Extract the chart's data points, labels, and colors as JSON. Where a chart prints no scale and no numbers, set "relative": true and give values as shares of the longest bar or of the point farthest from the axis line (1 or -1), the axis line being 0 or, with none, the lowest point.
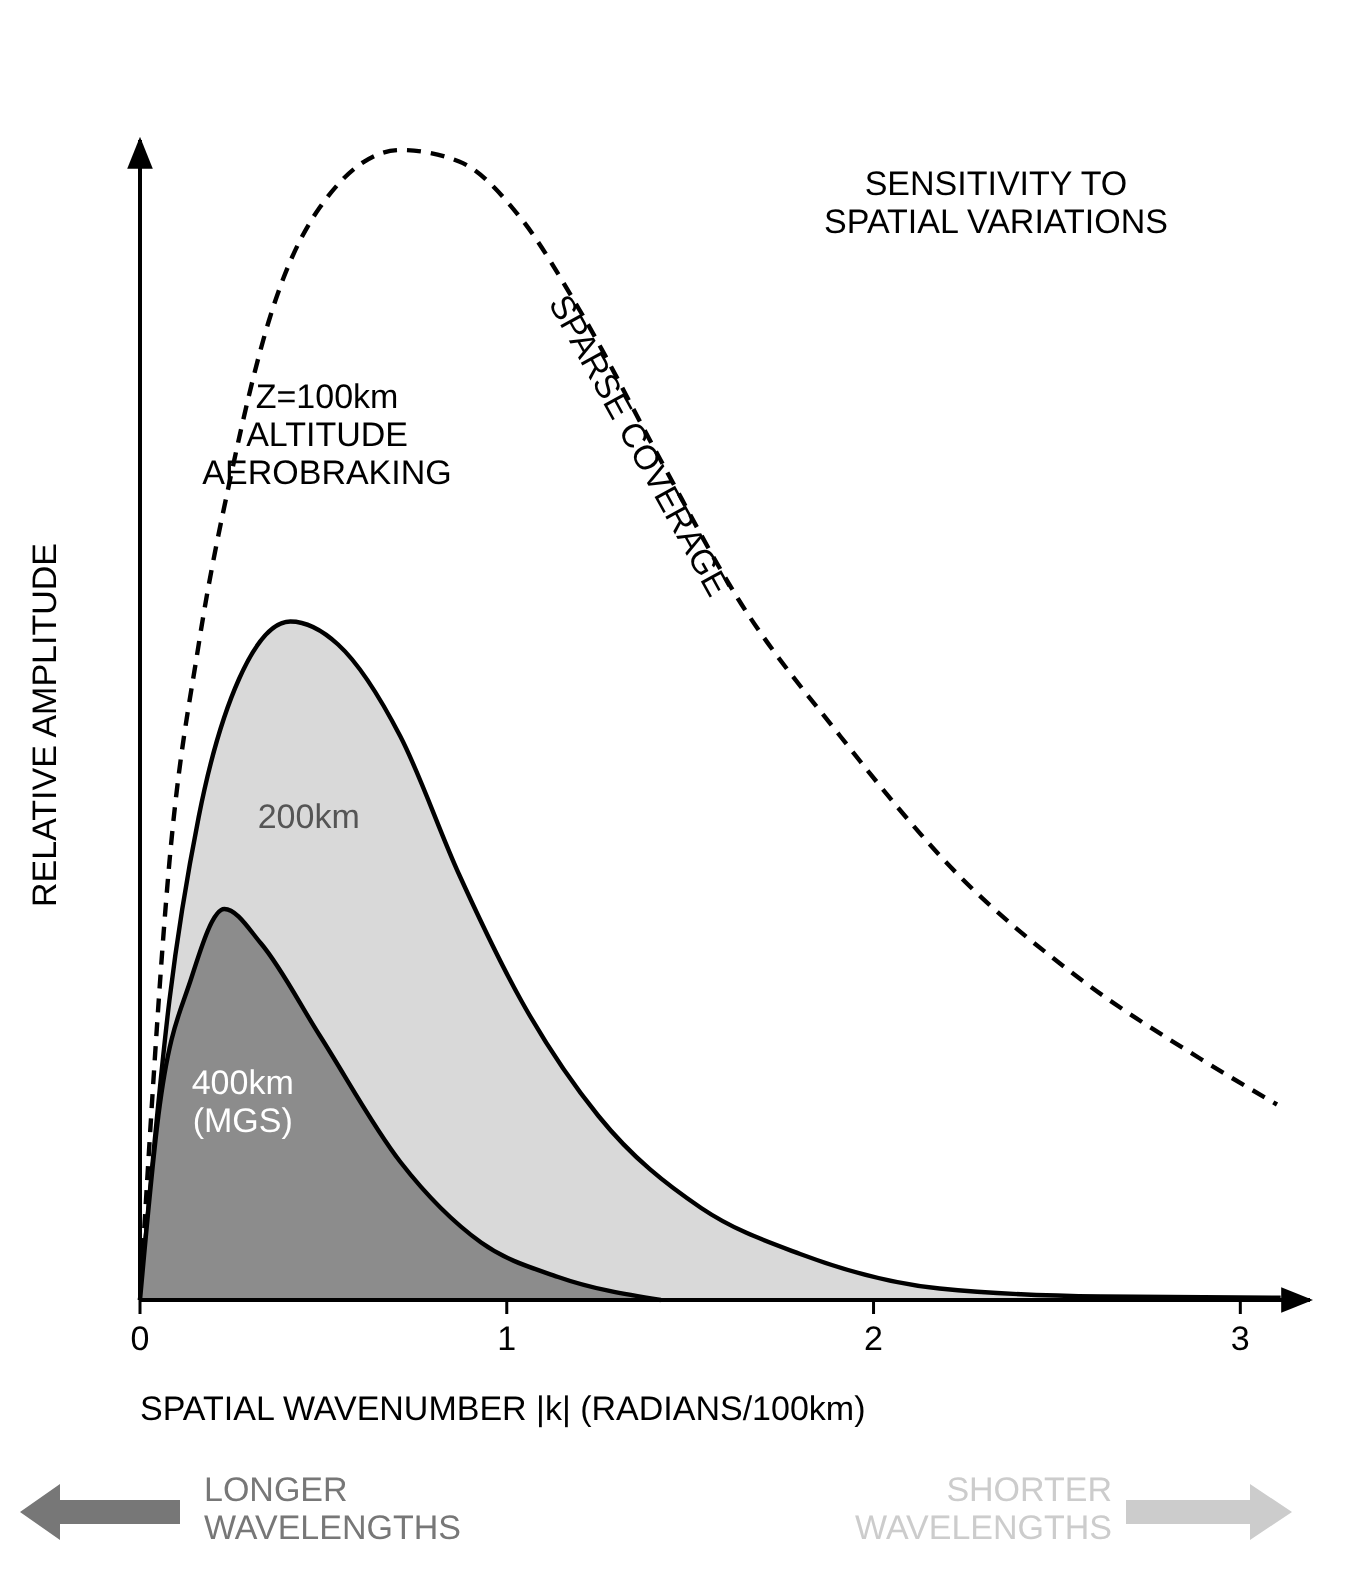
{
  "chart_data": {
    "type": "area",
    "relative": true,
    "title": "SENSITIVITY TO\nSPATIAL VARIATIONS",
    "xlabel": "SPATIAL WAVENUMBER |k| (RADIANS/100km)",
    "ylabel": "RELATIVE AMPLITUDE",
    "xlim": [
      0,
      3.19
    ],
    "xticks": [
      0,
      1,
      2,
      3
    ],
    "grid": false,
    "legend": false,
    "series": [
      {
        "name": "Z=100km\nALTITUDE\nAEROBRAKING",
        "type": "line",
        "line_style": "dashed",
        "color": "#000000",
        "x": [
          0,
          0.08,
          0.16,
          0.25,
          0.35,
          0.49,
          0.71,
          0.87,
          1.04,
          1.2,
          1.42,
          1.63,
          1.91,
          2.23,
          2.56,
          2.89,
          3.1
        ],
        "values": [
          0,
          0.38,
          0.57,
          0.72,
          0.85,
          0.95,
          1,
          0.99,
          0.94,
          0.86,
          0.73,
          0.61,
          0.49,
          0.37,
          0.28,
          0.21,
          0.17
        ]
      },
      {
        "name": "200km",
        "color": "#d9d9d9",
        "x": [
          0,
          0.08,
          0.16,
          0.27,
          0.41,
          0.54,
          0.71,
          0.87,
          1.04,
          1.25,
          1.53,
          1.8,
          2.18,
          2.62,
          3.11
        ],
        "values": [
          0,
          0.26,
          0.42,
          0.54,
          0.59,
          0.57,
          0.49,
          0.37,
          0.26,
          0.16,
          0.08,
          0.04,
          0.01,
          0.003,
          0.002
        ]
      },
      {
        "name": "400km\n(MGS)",
        "color": "#8c8c8c",
        "x": [
          0,
          0.05,
          0.14,
          0.23,
          0.33,
          0.49,
          0.71,
          0.93,
          1.14,
          1.42
        ],
        "values": [
          0,
          0.16,
          0.28,
          0.34,
          0.31,
          0.23,
          0.12,
          0.05,
          0.02,
          0
        ]
      }
    ],
    "annotations": [
      "SPARSE COVERAGE",
      "LONGER\nWAVELENGTHS",
      "SHORTER\nWAVELENGTHS"
    ]
  }
}
